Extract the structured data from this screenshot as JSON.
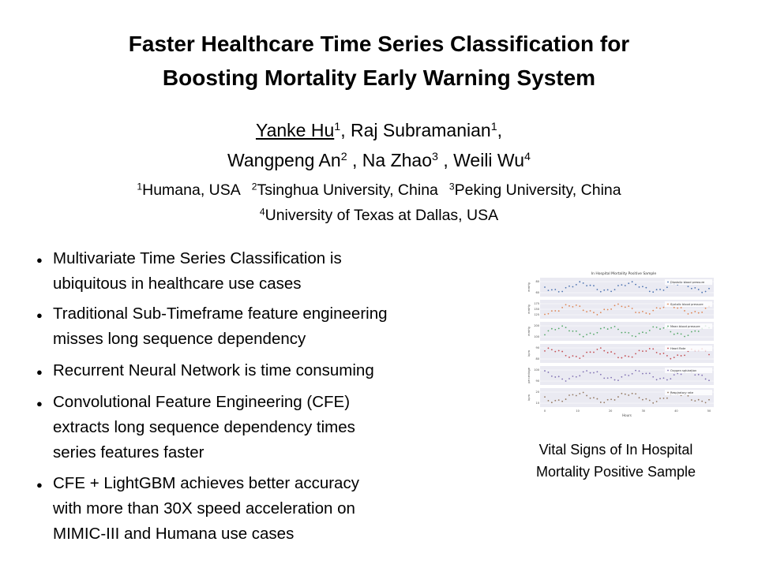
{
  "title": [
    "Faster Healthcare Time Series Classification for",
    "Boosting Mortality Early Warning System"
  ],
  "authors": [
    [
      {
        "name": "Yanke Hu",
        "sup": "1",
        "after": ","
      },
      {
        "name": "Raj Subramanian",
        "sup": "1",
        "after": ","
      }
    ],
    [
      {
        "name": "Wangpeng An",
        "sup": "2",
        "after": " ,"
      },
      {
        "name": "Na Zhao",
        "sup": "3",
        "after": " ,"
      },
      {
        "name": "Weili Wu",
        "sup": "4"
      }
    ]
  ],
  "affiliations": [
    [
      {
        "sup": "1",
        "text": "Humana, USA"
      },
      {
        "sup": "2",
        "text": "Tsinghua University, China"
      },
      {
        "sup": "3",
        "text": "Peking University, China"
      }
    ],
    [
      {
        "sup": "4",
        "text": "University of Texas at Dallas, USA"
      }
    ]
  ],
  "bullets": [
    [
      "Multivariate Time Series Classification is",
      "ubiquitous in healthcare use cases"
    ],
    [
      "Traditional Sub-Timeframe feature engineering",
      "misses long sequence dependency"
    ],
    [
      "Recurrent Neural Network is time consuming"
    ],
    [
      "Convolutional Feature Engineering (CFE)",
      "extracts long sequence dependency times",
      "series features faster"
    ],
    [
      "CFE + LightGBM achieves better accuracy",
      "with more than 30X speed acceleration on",
      "MIMIC-III and Humana use cases"
    ]
  ],
  "figure": {
    "title": "In Hospital Mortality Positive Sample",
    "panels": [
      {
        "label": "Diastolic blood pressure",
        "unit": "mmHg",
        "ticks": [
          "80",
          "60"
        ],
        "color": "#4c72b0"
      },
      {
        "label": "Systolic blood pressure",
        "unit": "mmHg",
        "ticks": [
          "175",
          "150",
          "125"
        ],
        "color": "#dd8452"
      },
      {
        "label": "Mean blood pressure",
        "unit": "mmHg",
        "ticks": [
          "200",
          "100"
        ],
        "color": "#55a868"
      },
      {
        "label": "Heart Rate",
        "unit": "bpm",
        "ticks": [
          "90",
          "80"
        ],
        "color": "#c44e52"
      },
      {
        "label": "Oxygen saturation",
        "unit": "percentage",
        "ticks": [
          "100",
          "90"
        ],
        "color": "#8172b3"
      },
      {
        "label": "Respiratory rate",
        "unit": "bpm",
        "ticks": [
          "20",
          "10"
        ],
        "color": "#937860"
      }
    ],
    "xticks": [
      "0",
      "10",
      "20",
      "30",
      "40",
      "50"
    ],
    "xlabel": "Hours",
    "caption": [
      "Vital Signs of In Hospital",
      "Mortality Positive Sample"
    ]
  }
}
